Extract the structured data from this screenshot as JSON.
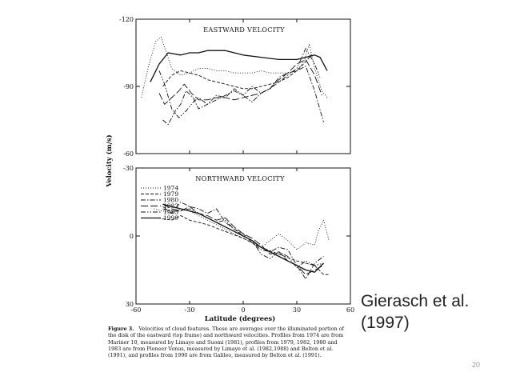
{
  "chart_data": [
    {
      "type": "line",
      "title": "EASTWARD VELOCITY",
      "xlim": [
        -60,
        60
      ],
      "ylim": [
        -120,
        -60
      ],
      "y_inverted": true,
      "yticks": [
        "-120",
        "-90",
        "-60"
      ],
      "ytick_values": [
        -120,
        -90,
        -60
      ],
      "series": [
        {
          "name": "1974",
          "style": "dotted",
          "x": [
            -57,
            -53,
            -49,
            -46,
            -43,
            -40,
            -35,
            -30,
            -25,
            -20,
            -15,
            -10,
            -5,
            0,
            5,
            10,
            15,
            20,
            25,
            30,
            34,
            37,
            40,
            44,
            47
          ],
          "y": [
            -85,
            -99,
            -110,
            -112,
            -105,
            -98,
            -95,
            -96,
            -98,
            -98,
            -97,
            -97,
            -96,
            -96,
            -96,
            -97,
            -96,
            -96,
            -96,
            -97,
            -101,
            -109,
            -98,
            -88,
            -85
          ]
        },
        {
          "name": "1979",
          "style": "dashed",
          "x": [
            -45,
            -40,
            -35,
            -30,
            -25,
            -20,
            -15,
            -10,
            -5,
            0,
            5,
            10,
            15,
            20,
            25,
            30,
            35,
            38
          ],
          "y": [
            -90,
            -95,
            -97,
            -96,
            -95,
            -93,
            -92,
            -91,
            -90,
            -89,
            -89,
            -90,
            -91,
            -92,
            -94,
            -97,
            -101,
            -104
          ]
        },
        {
          "name": "1980",
          "style": "dash-dot",
          "x": [
            -45,
            -42,
            -38,
            -35,
            -32,
            -28,
            -25,
            -20,
            -15,
            -10,
            -5,
            0,
            5,
            10,
            15,
            20,
            25,
            30,
            35,
            40,
            45
          ],
          "y": [
            -75,
            -73,
            -79,
            -82,
            -88,
            -85,
            -80,
            -82,
            -86,
            -85,
            -89,
            -86,
            -90,
            -87,
            -89,
            -94,
            -96,
            -97,
            -99,
            -88,
            -74
          ]
        },
        {
          "name": "1982",
          "style": "long-dash",
          "x": [
            -47,
            -44,
            -40,
            -36,
            -33,
            -29,
            -25,
            -20,
            -15,
            -10,
            -5,
            0,
            5,
            10,
            15,
            20,
            25,
            30,
            35,
            40,
            44
          ],
          "y": [
            -87,
            -82,
            -85,
            -88,
            -91,
            -87,
            -84,
            -84,
            -85,
            -85,
            -84,
            -85,
            -86,
            -87,
            -89,
            -93,
            -96,
            -100,
            -102,
            -95,
            -86
          ]
        },
        {
          "name": "1983",
          "style": "dash-dot-dot",
          "x": [
            -47,
            -44,
            -40,
            -36,
            -32,
            -28,
            -25,
            -20,
            -15,
            -10,
            -5,
            0,
            5,
            10,
            15,
            20,
            25,
            30,
            35,
            40,
            43
          ],
          "y": [
            -97,
            -91,
            -80,
            -76,
            -79,
            -83,
            -85,
            -82,
            -84,
            -86,
            -88,
            -86,
            -83,
            -87,
            -89,
            -92,
            -95,
            -98,
            -107,
            -100,
            -94
          ]
        },
        {
          "name": "1990",
          "style": "solid",
          "x": [
            -52,
            -47,
            -42,
            -35,
            -30,
            -25,
            -20,
            -10,
            0,
            10,
            20,
            30,
            35,
            40,
            43,
            47
          ],
          "y": [
            -92,
            -100,
            -105,
            -104,
            -105,
            -105,
            -106,
            -106,
            -104,
            -103,
            -102,
            -102,
            -103,
            -104,
            -103,
            -97
          ]
        }
      ]
    },
    {
      "type": "line",
      "title": "NORTHWARD VELOCITY",
      "xlabel": "Latitude (degrees)",
      "xlim": [
        -60,
        60
      ],
      "ylim": [
        -30,
        30
      ],
      "yticks": [
        "30",
        "0",
        "-30"
      ],
      "ytick_values": [
        30,
        0,
        -30
      ],
      "xticks": [
        "-60",
        "-30",
        "0",
        "30",
        "60"
      ],
      "xtick_values": [
        -60,
        -30,
        0,
        30,
        60
      ],
      "legend_placement": "top-left",
      "series": [
        {
          "name": "1974",
          "style": "dotted",
          "x": [
            -50,
            -45,
            -40,
            -35,
            -30,
            -25,
            -20,
            -15,
            -10,
            -5,
            0,
            5,
            10,
            15,
            20,
            25,
            30,
            35,
            40,
            42,
            45,
            48
          ],
          "y": [
            -12,
            -11,
            -10,
            -12,
            -11,
            -9,
            -7,
            -5,
            -3,
            -1,
            1,
            3,
            5,
            2,
            -1,
            2,
            6,
            3,
            4,
            -2,
            -7,
            2
          ]
        },
        {
          "name": "1979",
          "style": "dashed",
          "x": [
            -48,
            -40,
            -35,
            -30,
            -20,
            -10,
            0,
            10,
            20,
            30,
            35,
            40,
            45,
            48
          ],
          "y": [
            -8,
            -7,
            -9,
            -7,
            -5,
            -2,
            1,
            5,
            8,
            11,
            12,
            13,
            17,
            17
          ]
        },
        {
          "name": "1980",
          "style": "dash-dot",
          "x": [
            -45,
            -40,
            -35,
            -30,
            -25,
            -20,
            -15,
            -10,
            -5,
            0,
            5,
            10,
            15,
            20,
            25,
            30,
            35,
            40,
            45
          ],
          "y": [
            -13,
            -10,
            -15,
            -13,
            -12,
            -10,
            -12,
            -6,
            -3,
            -1,
            3,
            6,
            7,
            5,
            6,
            13,
            19,
            12,
            9
          ]
        },
        {
          "name": "1982",
          "style": "long-dash",
          "x": [
            -45,
            -40,
            -35,
            -30,
            -25,
            -20,
            -15,
            -10,
            -5,
            0,
            5,
            10,
            15,
            20,
            25,
            30,
            35,
            40,
            45
          ],
          "y": [
            -14,
            -12,
            -11,
            -13,
            -10,
            -9,
            -7,
            -8,
            -4,
            -1,
            1,
            4,
            8,
            7,
            11,
            13,
            17,
            15,
            13
          ]
        },
        {
          "name": "1983",
          "style": "dash-dot-dot",
          "x": [
            -45,
            -40,
            -35,
            -30,
            -25,
            -20,
            -15,
            -10,
            -5,
            0,
            5,
            10,
            15,
            20,
            25,
            30,
            35,
            40,
            45
          ],
          "y": [
            -12,
            -11,
            -11,
            -12,
            -10,
            -8,
            -6,
            -7,
            -3,
            0,
            2,
            8,
            10,
            7,
            9,
            14,
            11,
            13,
            12
          ]
        },
        {
          "name": "1990",
          "style": "solid",
          "x": [
            -45,
            -40,
            -35,
            -30,
            -25,
            -20,
            -15,
            -10,
            -5,
            0,
            5,
            10,
            15,
            20,
            25,
            30,
            35,
            40,
            45
          ],
          "y": [
            -14,
            -13,
            -12,
            -11,
            -10,
            -8,
            -6,
            -4,
            -2,
            0,
            2,
            5,
            7,
            9,
            11,
            13,
            15,
            16,
            12
          ]
        }
      ]
    }
  ],
  "shared_ylabel": "Velocity (m/s)",
  "styles": {
    "line_color": "#111111",
    "axis_color": "#111111"
  },
  "caption": {
    "lead": "Figure 3.",
    "text": "Velocities of cloud features. These are averages over the illuminated portion of the disk of the eastward (top frame) and northward velocities. Profiles from 1974 are from Mariner 10, measured by Limaye and Suomi (1981), profiles from 1979, 1982, 1980 and 1983 are from Pioneer Venus, measured by Limaye et al. (1982,1988) and Belton et al. (1991), and profiles from 1990 are from Galileo, measured by Belton et al. (1991)."
  },
  "citation": {
    "line1": "Gierasch et al.",
    "line2": "(1997)"
  },
  "page_number": "20"
}
